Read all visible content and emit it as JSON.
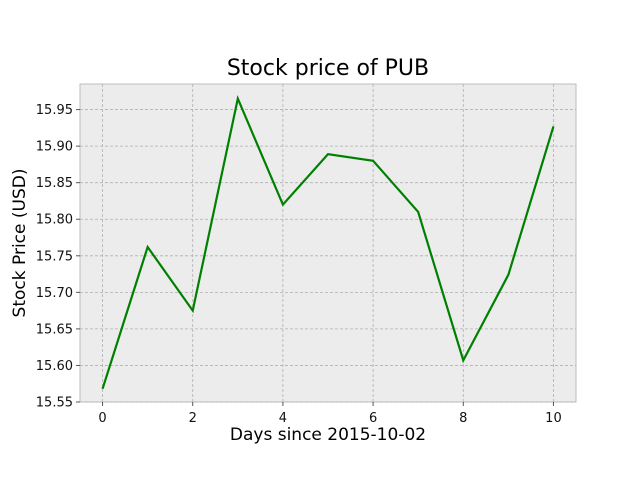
{
  "chart_data": {
    "type": "line",
    "title": "Stock price of PUB",
    "xlabel": "Days since 2015-10-02",
    "ylabel": "Stock Price (USD)",
    "x": [
      0,
      1,
      2,
      3,
      4,
      5,
      6,
      7,
      8,
      9,
      10
    ],
    "series": [
      {
        "values": [
          15.568,
          15.762,
          15.675,
          15.965,
          15.82,
          15.889,
          15.88,
          15.81,
          15.607,
          15.724,
          15.927
        ],
        "color": "#008000"
      }
    ],
    "xlim": [
      -0.5,
      10.5
    ],
    "ylim": [
      15.55,
      15.985
    ],
    "xticks": [
      0,
      2,
      4,
      6,
      8,
      10
    ],
    "yticks": [
      15.55,
      15.6,
      15.65,
      15.7,
      15.75,
      15.8,
      15.85,
      15.9,
      15.95
    ],
    "xtick_labels": [
      "0",
      "2",
      "4",
      "6",
      "8",
      "10"
    ],
    "ytick_labels": [
      "15.55",
      "15.60",
      "15.65",
      "15.70",
      "15.75",
      "15.80",
      "15.85",
      "15.90",
      "15.95"
    ],
    "grid": true,
    "plot_background": "#ececec",
    "grid_color": "#b0b0b0"
  }
}
